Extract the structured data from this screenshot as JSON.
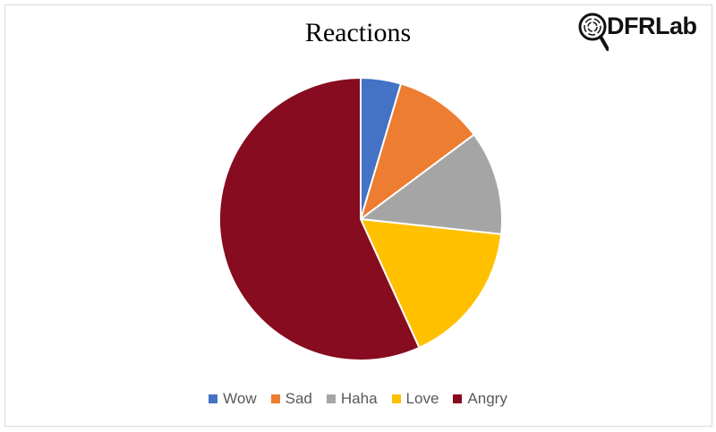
{
  "logo": {
    "text": "DFRLab"
  },
  "chart_data": {
    "type": "pie",
    "title": "Reactions",
    "categories": [
      "Wow",
      "Sad",
      "Haha",
      "Love",
      "Angry"
    ],
    "values": [
      4.6,
      10.2,
      11.9,
      16.5,
      56.8
    ],
    "colors": [
      "#4472c4",
      "#ed7d31",
      "#a5a5a5",
      "#ffc000",
      "#870c1f"
    ],
    "legend_position": "bottom",
    "start_angle": "top, clockwise"
  }
}
